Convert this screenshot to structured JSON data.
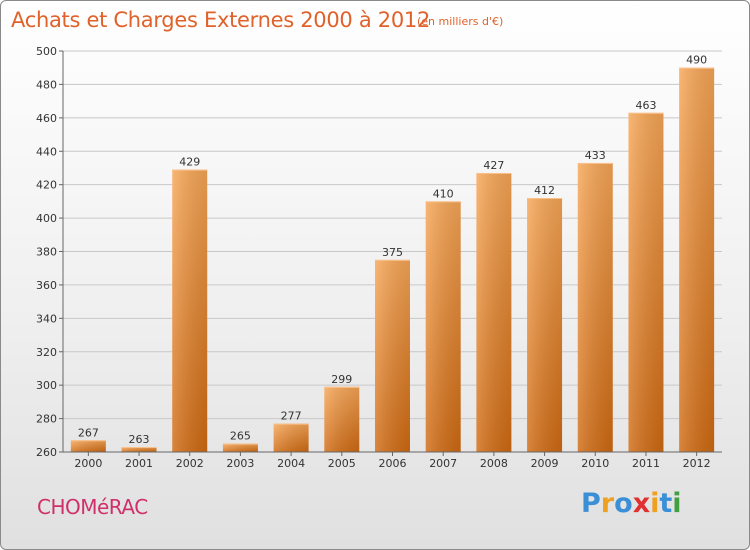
{
  "header": {
    "title": "Achats et Charges Externes 2000 à 2012",
    "unit_note": "(en milliers d'€)"
  },
  "footer": {
    "place": "CHOMéRAC",
    "brand": [
      "P",
      "r",
      "o",
      "x",
      "i",
      "t",
      "i"
    ],
    "brand_colors": [
      "#3a8fd6",
      "#f0a020",
      "#3a8fd6",
      "#e03030",
      "#f0a020",
      "#3a8fd6",
      "#40a040"
    ]
  },
  "chart_data": {
    "type": "bar",
    "categories": [
      "2000",
      "2001",
      "2002",
      "2003",
      "2004",
      "2005",
      "2006",
      "2007",
      "2008",
      "2009",
      "2010",
      "2011",
      "2012"
    ],
    "values": [
      267,
      263,
      429,
      265,
      277,
      299,
      375,
      410,
      427,
      412,
      433,
      463,
      490
    ],
    "data_labels": [
      "267",
      "263",
      "429",
      "265",
      "277",
      "299",
      "375",
      "410",
      "427",
      "412",
      "433",
      "463",
      "490"
    ],
    "ylim": [
      260,
      500
    ],
    "yticks": [
      260,
      280,
      300,
      320,
      340,
      360,
      380,
      400,
      420,
      440,
      460,
      480,
      500
    ],
    "grid": true,
    "bar_color_top": "#f7a656",
    "bar_color_bottom": "#d06a12"
  }
}
